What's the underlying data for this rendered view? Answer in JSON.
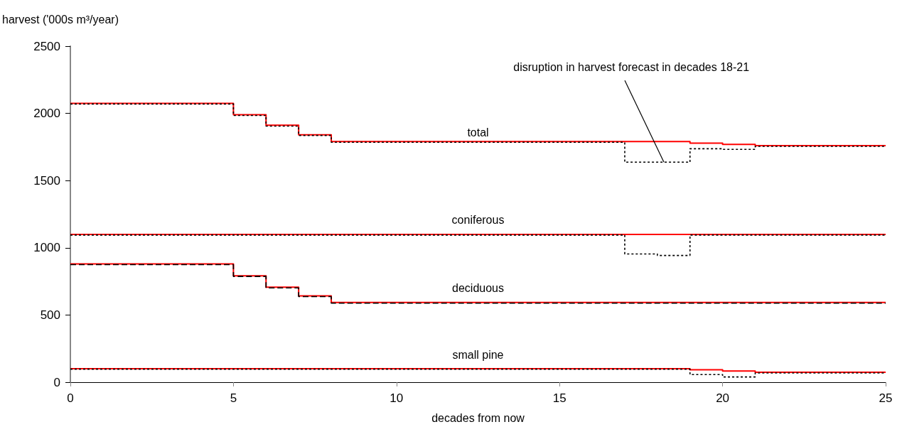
{
  "chart_data": {
    "type": "step",
    "xlabel": "decades from now",
    "ylabel": "harvest ('000s m³/year)",
    "xlim": [
      0,
      25
    ],
    "xticks": [
      0,
      5,
      10,
      15,
      20,
      25
    ],
    "ylim": [
      0,
      2500
    ],
    "yticks": [
      0,
      500,
      1000,
      1500,
      2000,
      2500
    ],
    "grid": false,
    "legend": false,
    "marker": "none",
    "series": [
      {
        "name": "total",
        "color": "#ff0000",
        "line_style": "solid",
        "x": [
          0,
          5,
          6,
          7,
          8,
          19,
          20,
          21,
          25
        ],
        "values": [
          2075,
          1990,
          1912,
          1841,
          1790,
          1778,
          1769,
          1760,
          1760
        ]
      },
      {
        "color": "#000000",
        "line_style": "dotted",
        "x": [
          0,
          5,
          6,
          7,
          8,
          17,
          19,
          20,
          21,
          25
        ],
        "values": [
          2070,
          1985,
          1905,
          1836,
          1785,
          1637,
          1737,
          1732,
          1755,
          1755
        ]
      },
      {
        "name": "coniferous",
        "color": "#ff0000",
        "line_style": "solid",
        "x": [
          0,
          25
        ],
        "values": [
          1100,
          1100
        ]
      },
      {
        "color": "#000000",
        "line_style": "dotted",
        "x": [
          0,
          17,
          18,
          19,
          25
        ],
        "values": [
          1095,
          954,
          943,
          1095,
          1095
        ]
      },
      {
        "name": "deciduous",
        "color": "#ff0000",
        "line_style": "solid",
        "x": [
          0,
          5,
          6,
          7,
          8,
          25
        ],
        "values": [
          880,
          792,
          707,
          642,
          593,
          593
        ]
      },
      {
        "color": "#000000",
        "line_style": "dashed",
        "x": [
          0,
          5,
          6,
          7,
          8,
          25
        ],
        "values": [
          875,
          787,
          702,
          637,
          588,
          588
        ]
      },
      {
        "name": "small pine",
        "color": "#ff0000",
        "line_style": "solid",
        "x": [
          0,
          19,
          20,
          21,
          25
        ],
        "values": [
          100,
          92,
          83,
          74,
          74
        ]
      },
      {
        "color": "#000000",
        "line_style": "dotted",
        "x": [
          0,
          19,
          20,
          21,
          25
        ],
        "values": [
          97,
          57,
          39,
          69,
          69
        ]
      }
    ],
    "annotations": [
      {
        "text": "disruption in harvest forecast in decades 18-21",
        "x": 18.2,
        "y": 1637
      }
    ]
  }
}
